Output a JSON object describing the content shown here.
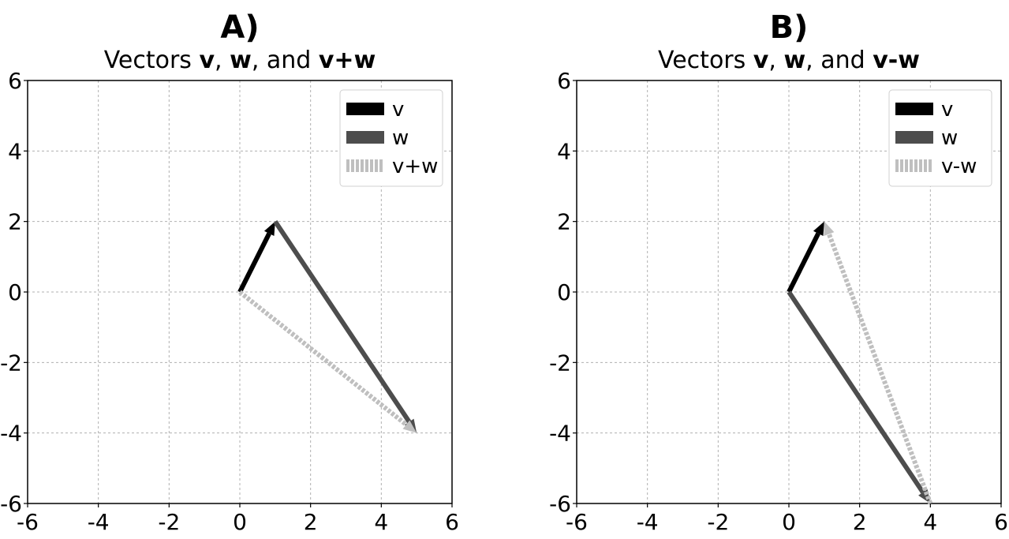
{
  "chart_data": [
    {
      "type": "vector",
      "panel_title": "A)",
      "title_parts": [
        {
          "text": "Vectors ",
          "bold": false
        },
        {
          "text": "v",
          "bold": true
        },
        {
          "text": ", ",
          "bold": false
        },
        {
          "text": "w",
          "bold": true
        },
        {
          "text": ", and ",
          "bold": false
        },
        {
          "text": "v+w",
          "bold": true
        }
      ],
      "xlim": [
        -6,
        6
      ],
      "ylim": [
        -6,
        6
      ],
      "xticks": [
        "-6",
        "-4",
        "-2",
        "0",
        "2",
        "4",
        "6"
      ],
      "yticks": [
        "6",
        "4",
        "2",
        "0",
        "-2",
        "-4",
        "-6"
      ],
      "grid": true,
      "legend_position": "top-right",
      "series": [
        {
          "name": "v",
          "start": [
            0,
            0
          ],
          "end": [
            1,
            2
          ],
          "color": "#000000",
          "style": "solid"
        },
        {
          "name": "w",
          "start": [
            1,
            2
          ],
          "end": [
            5,
            -4
          ],
          "color": "#4d4d4d",
          "style": "solid"
        },
        {
          "name": "v+w",
          "start": [
            0,
            0
          ],
          "end": [
            5,
            -4
          ],
          "color": "#bfbfbf",
          "style": "dashed"
        }
      ]
    },
    {
      "type": "vector",
      "panel_title": "B)",
      "title_parts": [
        {
          "text": "Vectors ",
          "bold": false
        },
        {
          "text": "v",
          "bold": true
        },
        {
          "text": ", ",
          "bold": false
        },
        {
          "text": "w",
          "bold": true
        },
        {
          "text": ", and ",
          "bold": false
        },
        {
          "text": "v-w",
          "bold": true
        }
      ],
      "xlim": [
        -6,
        6
      ],
      "ylim": [
        -6,
        6
      ],
      "xticks": [
        "-6",
        "-4",
        "-2",
        "0",
        "2",
        "4",
        "6"
      ],
      "yticks": [
        "6",
        "4",
        "2",
        "0",
        "-2",
        "-4",
        "-6"
      ],
      "grid": true,
      "legend_position": "top-right",
      "series": [
        {
          "name": "v",
          "start": [
            0,
            0
          ],
          "end": [
            1,
            2
          ],
          "color": "#000000",
          "style": "solid"
        },
        {
          "name": "w",
          "start": [
            0,
            0
          ],
          "end": [
            4,
            -6
          ],
          "color": "#4d4d4d",
          "style": "solid"
        },
        {
          "name": "v-w",
          "start": [
            4,
            -6
          ],
          "end": [
            1,
            2
          ],
          "color": "#bfbfbf",
          "style": "dashed"
        }
      ]
    }
  ]
}
